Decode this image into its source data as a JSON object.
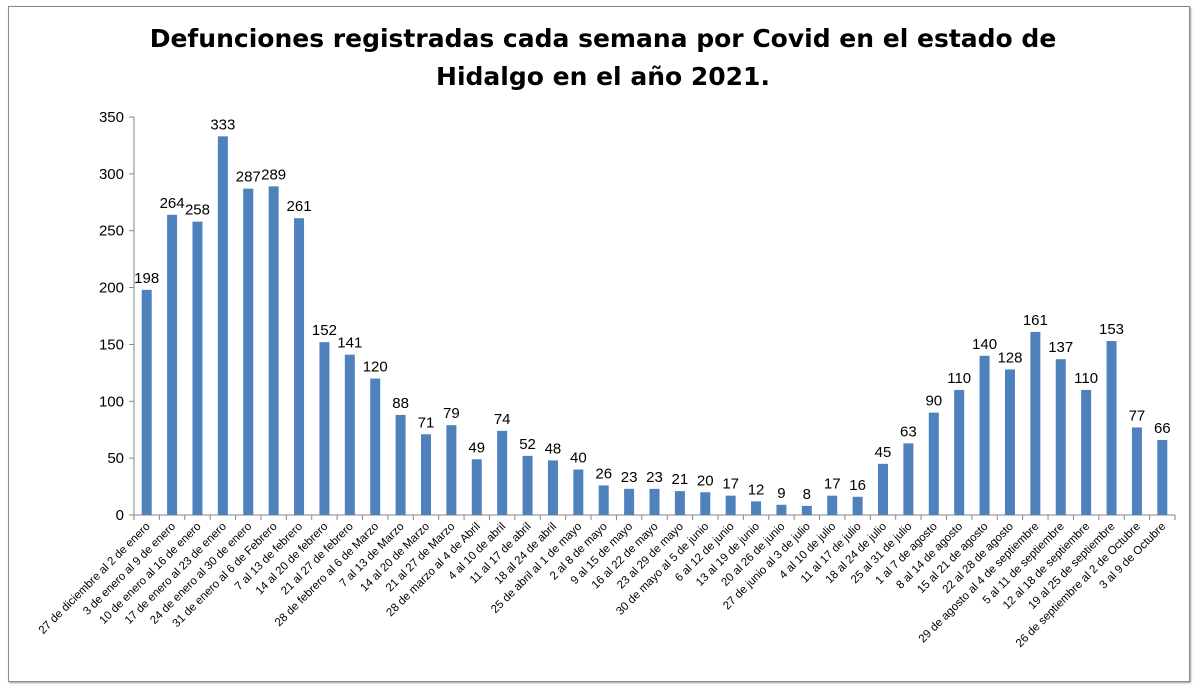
{
  "chart_data": {
    "type": "bar",
    "title": "Defunciones registradas cada semana por Covid en el estado de Hidalgo en el año 2021.",
    "title_lines": [
      "Defunciones registradas cada semana por Covid en el estado de",
      "Hidalgo en el año 2021."
    ],
    "xlabel": "",
    "ylabel": "",
    "ylim": [
      0,
      350
    ],
    "yticks": [
      0,
      50,
      100,
      150,
      200,
      250,
      300,
      350
    ],
    "grid": false,
    "legend": "none",
    "bar_color": "#4f81bd",
    "categories": [
      "27 de diciembre al 2 de enero",
      "3 de enero al 9 de enero",
      "10 de enero al 16 de enero",
      "17 de enero al 23 de enero",
      "24 de enero al 30 de enero",
      "31 de enero al 6 de Febrero",
      "7 al 13 de febrero",
      "14 al 20 de febrero",
      "21 al 27 de febrero",
      "28 de febrero al  6 de Marzo",
      "7 al 13 de Marzo",
      "14 al 20 de Marzo",
      "21 al 27 de Marzo",
      "28 de marzo al 4 de Abril",
      "4 al 10 de abril",
      "11 al 17 de abril",
      "18 al 24 de abril",
      "25 de abril al 1 de mayo",
      "2 al 8 de mayo",
      "9 al 15 de mayo",
      "16 al 22 de mayo",
      "23 al 29 de mayo",
      "30 de mayo al 5 de junio",
      "6 al 12 de junio",
      "13 al 19 de junio",
      "20 al 26 de junio",
      "27 de junio al 3 de julio",
      "4 al 10 de julio",
      "11 al 17 de julio",
      "18 al 24 de julio",
      "25 al 31 de julio",
      "1 al 7 de agosto",
      "8 al 14 de agosto",
      "15 al 21 de agosto",
      "22 al 28 de agosto",
      "29 de agosto al 4 de septiembre",
      "5 al 11 de septiembre",
      "12 al 18 de septiembre",
      "19 al 25 de septiembre",
      "26 de septiembre al 2 de Octubre",
      "3 al 9 de Octubre"
    ],
    "values": [
      198,
      264,
      258,
      333,
      287,
      289,
      261,
      152,
      141,
      120,
      88,
      71,
      79,
      49,
      74,
      52,
      48,
      40,
      26,
      23,
      23,
      21,
      20,
      17,
      12,
      9,
      8,
      17,
      16,
      45,
      63,
      90,
      110,
      140,
      128,
      161,
      137,
      110,
      153,
      77,
      66
    ]
  }
}
